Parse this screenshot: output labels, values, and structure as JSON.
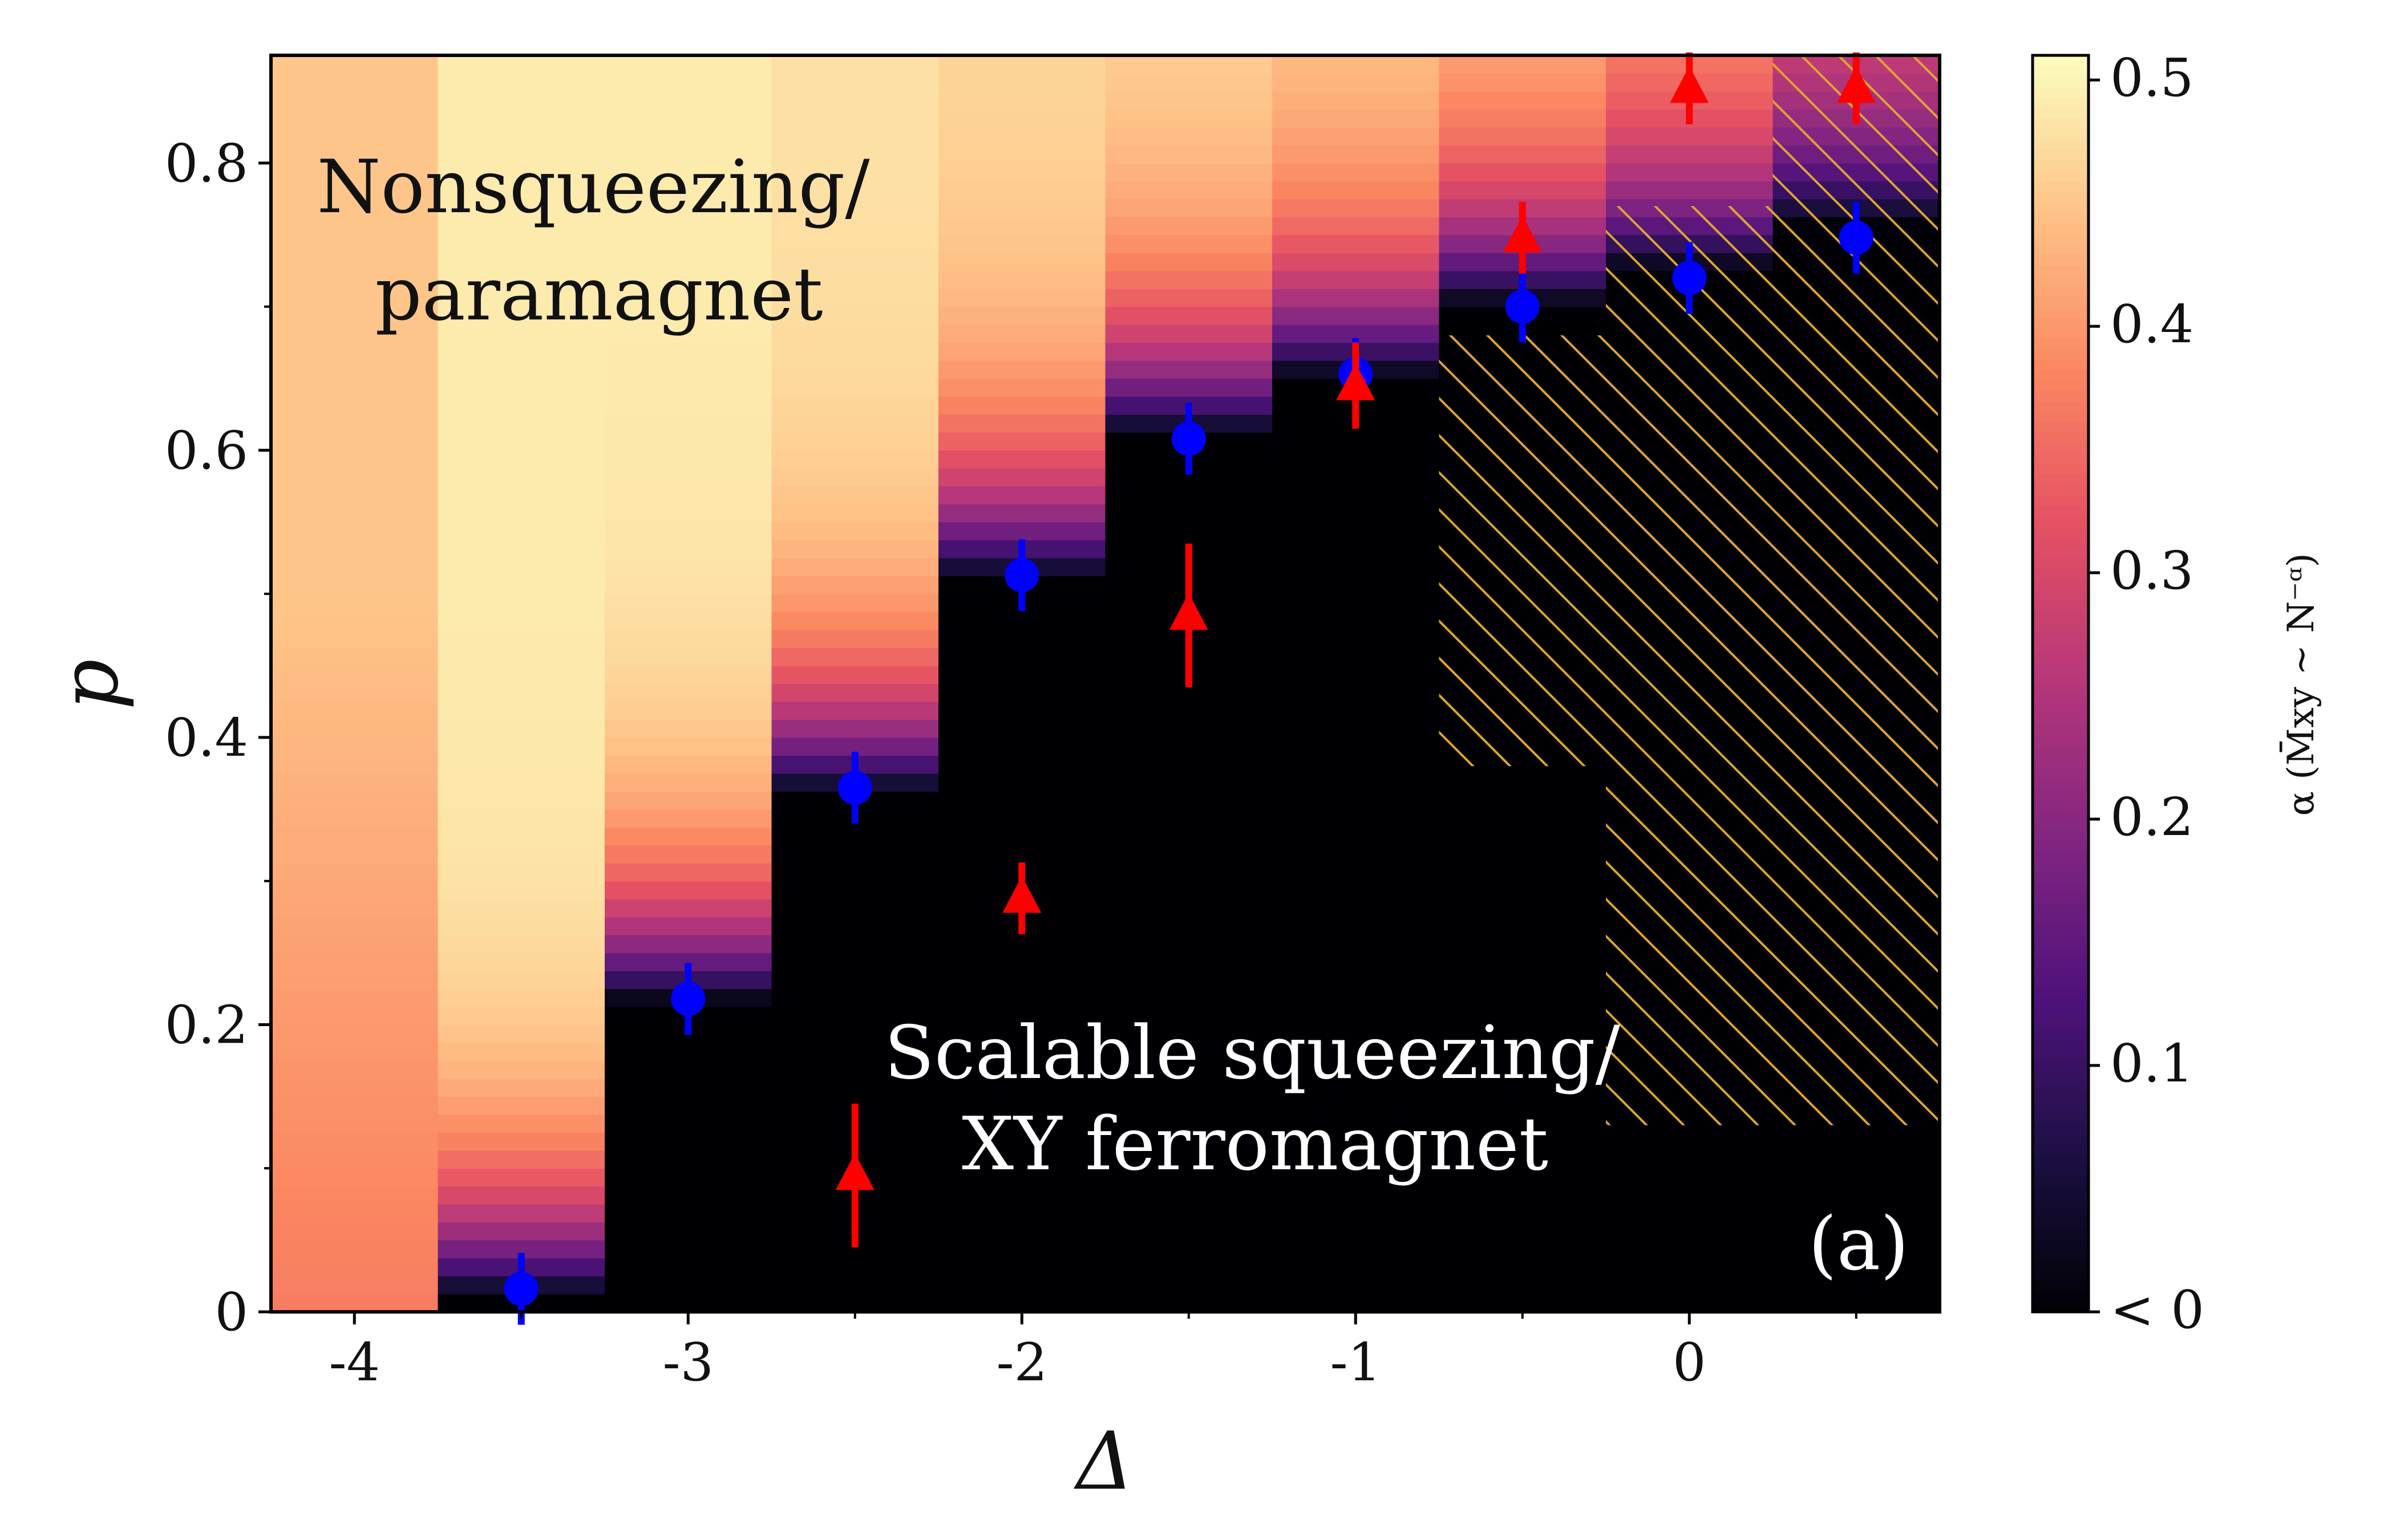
{
  "chart_data": {
    "type": "heatmap",
    "title": "",
    "xlabel": "Δ",
    "ylabel": "p",
    "xlim": [
      -4.25,
      0.75
    ],
    "ylim": [
      0,
      0.875
    ],
    "x_ticks": [
      {
        "value": -4,
        "label": "-4"
      },
      {
        "value": -3,
        "label": "-3"
      },
      {
        "value": -2,
        "label": "-2"
      },
      {
        "value": -1,
        "label": "-1"
      },
      {
        "value": 0,
        "label": "0"
      }
    ],
    "y_ticks": [
      {
        "value": 0,
        "label": "0"
      },
      {
        "value": 0.2,
        "label": "0.2"
      },
      {
        "value": 0.4,
        "label": "0.4"
      },
      {
        "value": 0.6,
        "label": "0.6"
      },
      {
        "value": 0.8,
        "label": "0.8"
      }
    ],
    "colorbar": {
      "label": "α  (M̄xy ∼ N⁻ᵅ)",
      "range": [
        0,
        0.51
      ],
      "ticks": [
        {
          "value": 0,
          "label": "< 0"
        },
        {
          "value": 0.1,
          "label": "0.1"
        },
        {
          "value": 0.2,
          "label": "0.2"
        },
        {
          "value": 0.3,
          "label": "0.3"
        },
        {
          "value": 0.4,
          "label": "0.4"
        },
        {
          "value": 0.5,
          "label": "0.5"
        }
      ],
      "colormap": "magma",
      "stops": [
        "#000004",
        "#1c1044",
        "#4f127b",
        "#812581",
        "#b5367a",
        "#e55064",
        "#fb8761",
        "#fec287",
        "#fcfdbf"
      ]
    },
    "columns": [
      {
        "delta": -4.0,
        "threshold": -0.1,
        "alpha_high": 0.45,
        "alpha_low": 0.37
      },
      {
        "delta": -3.5,
        "threshold": 0.01,
        "alpha_high": 0.49,
        "alpha_low": 0.0
      },
      {
        "delta": -3.0,
        "threshold": 0.215,
        "alpha_high": 0.49,
        "alpha_low": 0.0
      },
      {
        "delta": -2.5,
        "threshold": 0.36,
        "alpha_high": 0.48,
        "alpha_low": 0.0
      },
      {
        "delta": -2.0,
        "threshold": 0.51,
        "alpha_high": 0.47,
        "alpha_low": 0.0
      },
      {
        "delta": -1.5,
        "threshold": 0.61,
        "alpha_high": 0.47,
        "alpha_low": 0.0
      },
      {
        "delta": -1.0,
        "threshold": 0.65,
        "alpha_high": 0.46,
        "alpha_low": 0.0
      },
      {
        "delta": -0.5,
        "threshold": 0.7,
        "alpha_high": 0.45,
        "alpha_low": 0.0
      },
      {
        "delta": 0.0,
        "threshold": 0.725,
        "alpha_high": 0.42,
        "alpha_low": 0.0
      },
      {
        "delta": 0.5,
        "threshold": 0.755,
        "alpha_high": 0.34,
        "alpha_low": 0.0
      }
    ],
    "hatched_regions": [
      {
        "x": [
          -0.75,
          -0.25
        ],
        "y": [
          0.38,
          0.68
        ]
      },
      {
        "x": [
          -0.25,
          0.25
        ],
        "y": [
          0.13,
          0.77
        ]
      },
      {
        "x": [
          0.25,
          0.75
        ],
        "y": [
          0.13,
          0.875
        ]
      }
    ],
    "series": [
      {
        "name": "blue circles",
        "marker": "circle",
        "color": "#0000ff",
        "points": [
          {
            "x": -3.5,
            "y": 0.016,
            "err": 0.025
          },
          {
            "x": -3.0,
            "y": 0.218,
            "err": 0.025
          },
          {
            "x": -2.5,
            "y": 0.365,
            "err": 0.025
          },
          {
            "x": -2.0,
            "y": 0.513,
            "err": 0.025
          },
          {
            "x": -1.5,
            "y": 0.608,
            "err": 0.025
          },
          {
            "x": -1.0,
            "y": 0.653,
            "err": 0.025
          },
          {
            "x": -0.5,
            "y": 0.7,
            "err": 0.025
          },
          {
            "x": 0.0,
            "y": 0.72,
            "err": 0.025
          },
          {
            "x": 0.5,
            "y": 0.748,
            "err": 0.025
          }
        ]
      },
      {
        "name": "red triangles",
        "marker": "triangle",
        "color": "#ff0000",
        "points": [
          {
            "x": -2.5,
            "y": 0.095,
            "err": 0.05
          },
          {
            "x": -2.0,
            "y": 0.288,
            "err": 0.025
          },
          {
            "x": -1.5,
            "y": 0.485,
            "err": 0.05
          },
          {
            "x": -1.0,
            "y": 0.645,
            "err": 0.03
          },
          {
            "x": -0.5,
            "y": 0.748,
            "err": 0.025
          },
          {
            "x": 0.0,
            "y": 0.852,
            "err": 0.025
          },
          {
            "x": 0.5,
            "y": 0.852,
            "err": 0.025
          }
        ]
      }
    ],
    "annotations": [
      {
        "line1": "Nonsqueezing/",
        "line2": "paramagnet",
        "x": -3.3,
        "y": 0.77,
        "color": "dark"
      },
      {
        "line1": "Scalable squeezing/",
        "line2": "XY ferromagnet",
        "x": -1.75,
        "y": 0.16,
        "color": "light"
      }
    ],
    "panel_label": "(a)",
    "hatch_color": "#dfa333"
  }
}
